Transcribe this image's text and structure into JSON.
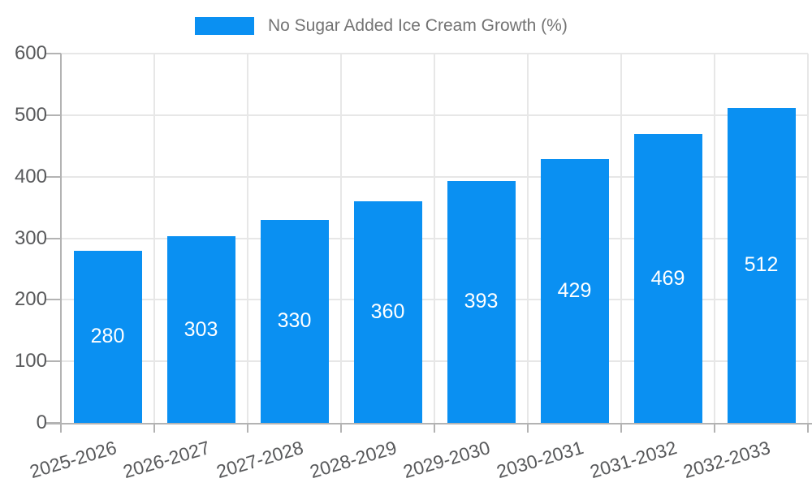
{
  "chart_data": {
    "type": "bar",
    "title": "No Sugar Added Ice Cream Growth (%)",
    "legend_entries": [
      "No Sugar Added Ice Cream Growth (%)"
    ],
    "legend_position": "top-center",
    "categories": [
      "2025-2026",
      "2026-2027",
      "2027-2028",
      "2028-2029",
      "2029-2030",
      "2030-2031",
      "2031-2032",
      "2032-2033"
    ],
    "values": [
      280,
      303,
      330,
      360,
      393,
      429,
      469,
      512
    ],
    "value_labels_shown": true,
    "yticks": [
      "0",
      "100",
      "200",
      "300",
      "400",
      "500",
      "600"
    ],
    "ylim": [
      0,
      600
    ],
    "xlabel": "",
    "ylabel": "",
    "grid": "horizontal and vertical gridlines on",
    "colors": {
      "bar": "#0a90f2",
      "grid": "#e7e7e7",
      "axis": "#b3b3b3",
      "tick_label": "#58595b",
      "legend_text": "#737373",
      "value_label": "#ffffff",
      "background": "#ffffff"
    }
  }
}
